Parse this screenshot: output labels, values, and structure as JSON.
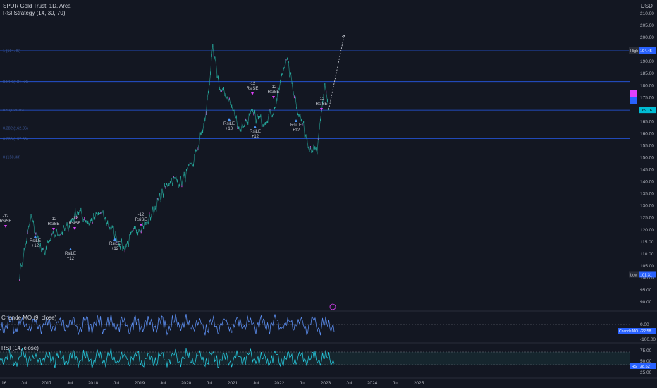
{
  "header": {
    "symbol_line": "SPDR Gold Trust, 1D, Arca",
    "strategy_line": "RSI Strategy (14, 30, 70)",
    "currency": "USD"
  },
  "colors": {
    "background": "#131722",
    "grid": "#1e222d",
    "axis_text": "#b2b5be",
    "candle_up": "#26a69a",
    "candle_tint": "#d040d0",
    "fib_line": "#2962ff",
    "fib_label": "#3d5a9e",
    "chande_line": "#5b8def",
    "rsi_line": "#26c6da",
    "marker_short": "#e040fb",
    "marker_long": "#4c9aff"
  },
  "fib_levels": [
    {
      "label": "1 (194.45)",
      "price": 194.45
    },
    {
      "label": "0.618 (181.63)",
      "price": 181.63
    },
    {
      "label": "0.5 (169.76)",
      "price": 169.76
    },
    {
      "label": "0.382 (162.36)",
      "price": 162.36
    },
    {
      "label": "0.236 (157.88)",
      "price": 157.88
    },
    {
      "label": "0 (150.33)",
      "price": 150.33
    }
  ],
  "price_axis": {
    "ticks": [
      "210.00",
      "205.00",
      "200.00",
      "195.00",
      "190.00",
      "185.00",
      "180.00",
      "175.00",
      "170.00",
      "165.00",
      "160.00",
      "155.00",
      "150.00",
      "145.00",
      "140.00",
      "135.00",
      "130.00",
      "125.00",
      "120.00",
      "115.00",
      "110.00",
      "105.00",
      "100.00",
      "95.00",
      "90.00"
    ],
    "high_label": "High",
    "high_value": "194.45",
    "low_label": "Low",
    "low_value": "101.31",
    "last_value": "169.76"
  },
  "time_axis": [
    "16",
    "Jul",
    "2017",
    "Jul",
    "2018",
    "Jul",
    "2019",
    "Jul",
    "2020",
    "Jul",
    "2021",
    "Jul",
    "2022",
    "Jul",
    "2023",
    "Jul",
    "2024",
    "Jul",
    "2025"
  ],
  "trade_markers": [
    {
      "type": "short",
      "line1": "-12",
      "line2": "RsiSE"
    },
    {
      "type": "long",
      "line1": "RsiLE",
      "line2": "+12"
    },
    {
      "type": "short",
      "line1": "-12",
      "line2": "RsiSE"
    },
    {
      "type": "long",
      "line1": "RsiLE",
      "line2": "+12"
    },
    {
      "type": "short",
      "line1": "-12",
      "line2": "RsiSE"
    },
    {
      "type": "long",
      "line1": "RsiLE",
      "line2": "+12"
    },
    {
      "type": "short",
      "line1": "-12",
      "line2": "RsiSE"
    },
    {
      "type": "long",
      "line1": "RsiLE",
      "line2": "+10"
    },
    {
      "type": "short",
      "line1": "-12",
      "line2": "RsiSE"
    },
    {
      "type": "long",
      "line1": "RsiLE",
      "line2": "+12"
    },
    {
      "type": "short",
      "line1": "-12",
      "line2": "RsiSE"
    },
    {
      "type": "long",
      "line1": "RsiLE",
      "line2": "+12"
    },
    {
      "type": "short",
      "line1": "-12",
      "line2": "RsiSE"
    }
  ],
  "chande": {
    "title": "Chande MO (9, close)",
    "axis_ticks": [
      "0.00",
      "-100.00"
    ],
    "badge_label": "Chande MO",
    "badge_value": "-22.58"
  },
  "rsi": {
    "title": "RSI (14, close)",
    "axis_ticks": [
      "75.00",
      "50.00",
      "25.00"
    ],
    "badge_label": "RSI",
    "badge_value": "38.62"
  },
  "chart_data": {
    "type": "line",
    "title": "SPDR Gold Trust, 1D, Arca",
    "series": [
      {
        "name": "SPDR Gold Trust",
        "x": [
          "2016-06",
          "2016-09",
          "2016-12",
          "2017-03",
          "2017-06",
          "2017-09",
          "2017-12",
          "2018-03",
          "2018-06",
          "2018-09",
          "2018-12",
          "2019-03",
          "2019-06",
          "2019-09",
          "2019-12",
          "2020-03",
          "2020-06",
          "2020-08",
          "2020-10",
          "2020-12",
          "2021-03",
          "2021-06",
          "2021-09",
          "2021-12",
          "2022-03",
          "2022-06",
          "2022-09",
          "2022-11",
          "2023-01",
          "2023-02"
        ],
        "values": [
          101.3,
          125,
          110,
          118,
          120,
          128,
          123,
          127,
          120,
          112,
          120,
          123,
          132,
          141,
          140,
          148,
          165,
          194.4,
          178,
          175,
          162,
          168,
          165,
          170,
          192,
          170,
          155,
          152,
          181,
          170
        ]
      }
    ],
    "ylim": [
      85,
      212
    ],
    "projection": {
      "to_price": 201
    }
  }
}
